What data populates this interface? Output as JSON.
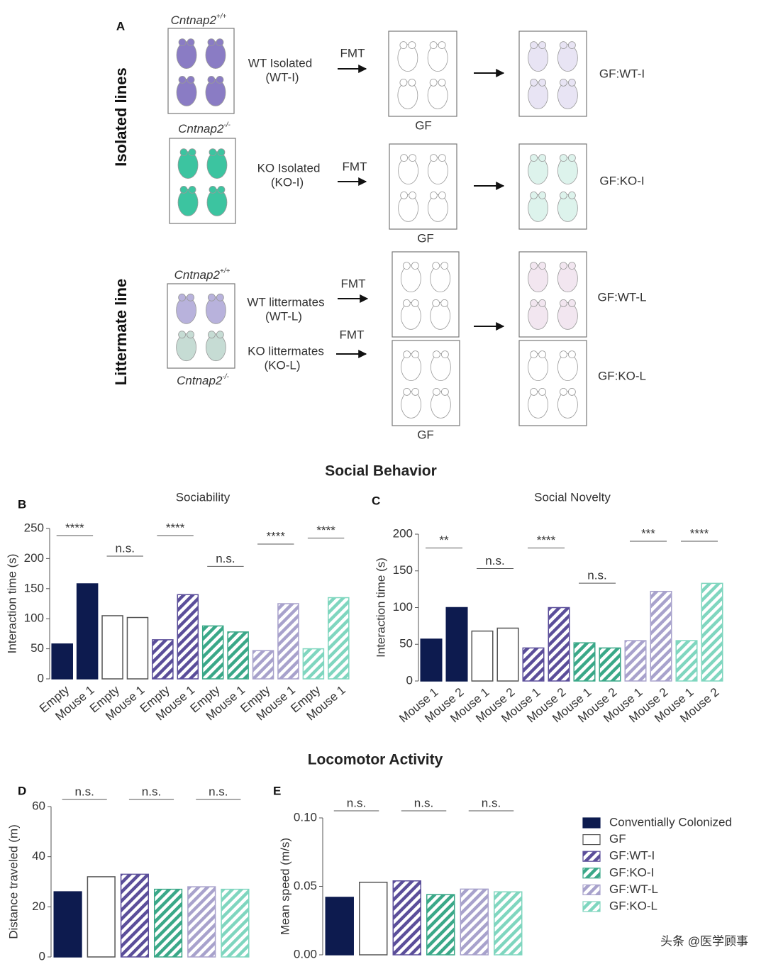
{
  "panel_a": {
    "label": "A",
    "isolated_title": "Isolated lines",
    "littermate_title": "Littermate line",
    "gene": "Cntnap2",
    "wt_genotype": "+/+",
    "ko_genotype": "-/-",
    "fmt": "FMT",
    "gf": "GF",
    "wt_isolated": [
      "WT Isolated",
      "(WT-I)"
    ],
    "ko_isolated": [
      "KO Isolated",
      "(KO-I)"
    ],
    "wt_littermates": [
      "WT littermates",
      "(WT-L)"
    ],
    "ko_littermates": [
      "KO littermates",
      "(KO-L)"
    ],
    "recipients": [
      "GF:WT-I",
      "GF:KO-I",
      "GF:WT-L",
      "GF:KO-L"
    ]
  },
  "headers": {
    "social": "Social Behavior",
    "locomotor": "Locomotor Activity"
  },
  "watermark": "头条 @医学顾事",
  "legend": [
    {
      "name": "Conventially Colonized",
      "color": "#0d1b4f",
      "pattern": "solid"
    },
    {
      "name": "GF",
      "color": "#555555",
      "pattern": "empty"
    },
    {
      "name": "GF:WT-I",
      "color": "#5b4e9a",
      "pattern": "hatch"
    },
    {
      "name": "GF:KO-I",
      "color": "#3aa888",
      "pattern": "hatch"
    },
    {
      "name": "GF:WT-L",
      "color": "#a8a2cc",
      "pattern": "hatch"
    },
    {
      "name": "GF:KO-L",
      "color": "#7fd6bf",
      "pattern": "hatch"
    }
  ],
  "chart_data": [
    {
      "type": "bar",
      "panel": "B",
      "title": "Sociability",
      "ylabel": "Interaction time (s)",
      "categories": [
        "Empty",
        "Mouse 1",
        "Empty",
        "Mouse 1",
        "Empty",
        "Mouse 1",
        "Empty",
        "Mouse 1",
        "Empty",
        "Mouse 1",
        "Empty",
        "Mouse 1"
      ],
      "values": [
        58,
        158,
        105,
        102,
        65,
        140,
        88,
        78,
        47,
        125,
        50,
        135
      ],
      "significance": [
        "****",
        "n.s.",
        "****",
        "n.s.",
        "****",
        "****"
      ],
      "ylim": [
        0,
        250
      ],
      "yticks": [
        0,
        50,
        100,
        150,
        200,
        250
      ]
    },
    {
      "type": "bar",
      "panel": "C",
      "title": "Social Novelty",
      "ylabel": "Interaction time (s)",
      "categories": [
        "Mouse 1",
        "Mouse 2",
        "Mouse 1",
        "Mouse 2",
        "Mouse 1",
        "Mouse 2",
        "Mouse 1",
        "Mouse 2",
        "Mouse 1",
        "Mouse 2",
        "Mouse 1",
        "Mouse 2"
      ],
      "values": [
        57,
        100,
        68,
        72,
        45,
        100,
        52,
        45,
        55,
        122,
        55,
        133
      ],
      "significance": [
        "**",
        "n.s.",
        "****",
        "n.s.",
        "***",
        "****"
      ],
      "ylim": [
        0,
        200
      ],
      "yticks": [
        0,
        50,
        100,
        150,
        200
      ]
    },
    {
      "type": "bar",
      "panel": "D",
      "ylabel": "Distance traveled (m)",
      "values": [
        26,
        32,
        33,
        27,
        28,
        27
      ],
      "significance": [
        "n.s.",
        "n.s.",
        "n.s."
      ],
      "ylim": [
        0,
        60
      ],
      "yticks": [
        0,
        20,
        40,
        60
      ]
    },
    {
      "type": "bar",
      "panel": "E",
      "ylabel": "Mean speed (m/s)",
      "values": [
        0.042,
        0.053,
        0.054,
        0.044,
        0.048,
        0.046
      ],
      "significance": [
        "n.s.",
        "n.s.",
        "n.s."
      ],
      "ylim": [
        0,
        0.1
      ],
      "yticks": [
        {
          "value": 0,
          "label": "0.00"
        },
        {
          "value": 0.05,
          "label": "0.05"
        },
        {
          "value": 0.1,
          "label": "0.10"
        }
      ]
    }
  ]
}
